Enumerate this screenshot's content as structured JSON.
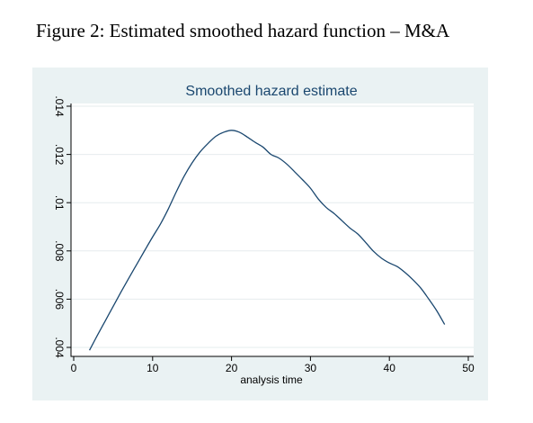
{
  "figure": {
    "caption": "Figure 2: Estimated smoothed hazard function – M&A"
  },
  "chart_data": {
    "type": "line",
    "title": "Smoothed hazard estimate",
    "xlabel": "analysis time",
    "ylabel": "",
    "xlim": [
      0,
      50
    ],
    "ylim": [
      0.004,
      0.014
    ],
    "xticks": [
      0,
      10,
      20,
      30,
      40,
      50
    ],
    "yticks": [
      0.004,
      0.006,
      0.008,
      0.01,
      0.012,
      0.014
    ],
    "xtick_labels": [
      "0",
      "10",
      "20",
      "30",
      "40",
      "50"
    ],
    "ytick_labels": [
      ".004",
      ".006",
      ".008",
      ".01",
      ".012",
      ".014"
    ],
    "grid": true,
    "legend": "none",
    "line_color": "#1a476f",
    "panel_color": "#eaf2f3",
    "series": [
      {
        "x": [
          2,
          3,
          4,
          5,
          6,
          7,
          8,
          9,
          10,
          11,
          12,
          13,
          14,
          15,
          16,
          17,
          18,
          19,
          20,
          21,
          22,
          23,
          24,
          25,
          26,
          27,
          28,
          29,
          30,
          31,
          32,
          33,
          34,
          35,
          36,
          37,
          38,
          39,
          40,
          41,
          42,
          43,
          44,
          45,
          46,
          47
        ],
        "y": [
          0.00388,
          0.0045,
          0.0051,
          0.0057,
          0.0063,
          0.00688,
          0.00745,
          0.00802,
          0.00858,
          0.00912,
          0.00975,
          0.01045,
          0.0111,
          0.01165,
          0.0121,
          0.01245,
          0.01275,
          0.01292,
          0.013,
          0.01292,
          0.01272,
          0.0125,
          0.0123,
          0.012,
          0.01185,
          0.0116,
          0.01128,
          0.01095,
          0.0106,
          0.01015,
          0.0098,
          0.00955,
          0.00925,
          0.00895,
          0.0087,
          0.00835,
          0.00798,
          0.0077,
          0.0075,
          0.00735,
          0.0071,
          0.0068,
          0.00645,
          0.006,
          0.00552,
          0.00495
        ]
      }
    ]
  }
}
